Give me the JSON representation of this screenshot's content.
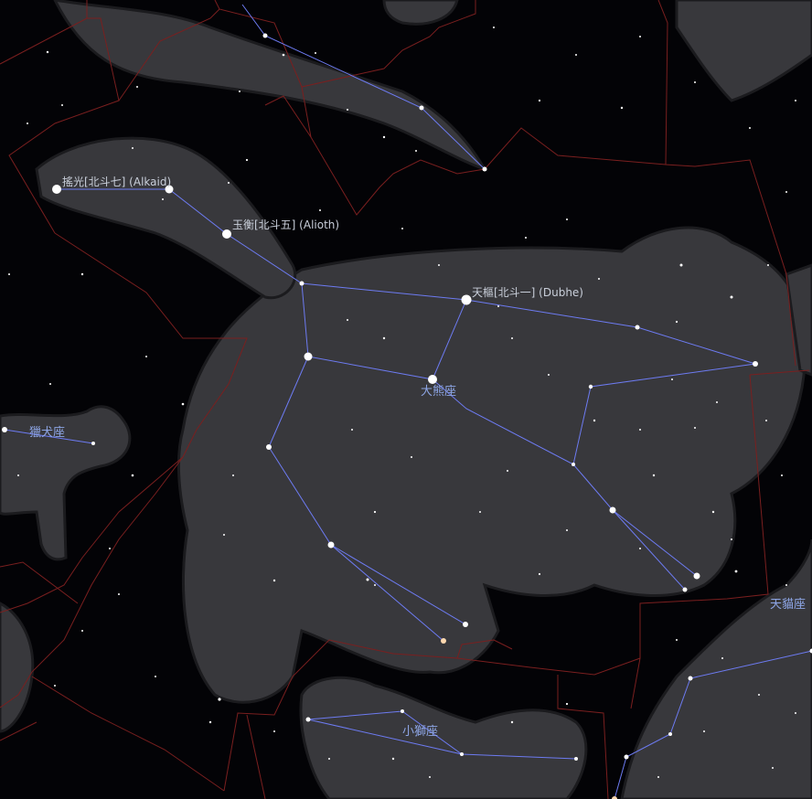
{
  "view": {
    "colors": {
      "background": "#030306",
      "figure_fill": "#3a3a3e",
      "figure_outline": "#1a1a1d",
      "constellation_line": "#6d7bf2",
      "boundary_line": "#7a1f1f",
      "star": "#ffffff",
      "star_label": "#c9cfda",
      "constellation_label": "#8ea6e6"
    }
  },
  "labels": {
    "alkaid": "搖光[北斗七] (Alkaid)",
    "alioth": "玉衡[北斗五] (Alioth)",
    "dubhe": "天樞[北斗一] (Dubhe)",
    "ursa_major": "大熊座",
    "canes_venatici": "獵犬座",
    "leo_minor": "小獅座",
    "lynx": "天貓座"
  }
}
